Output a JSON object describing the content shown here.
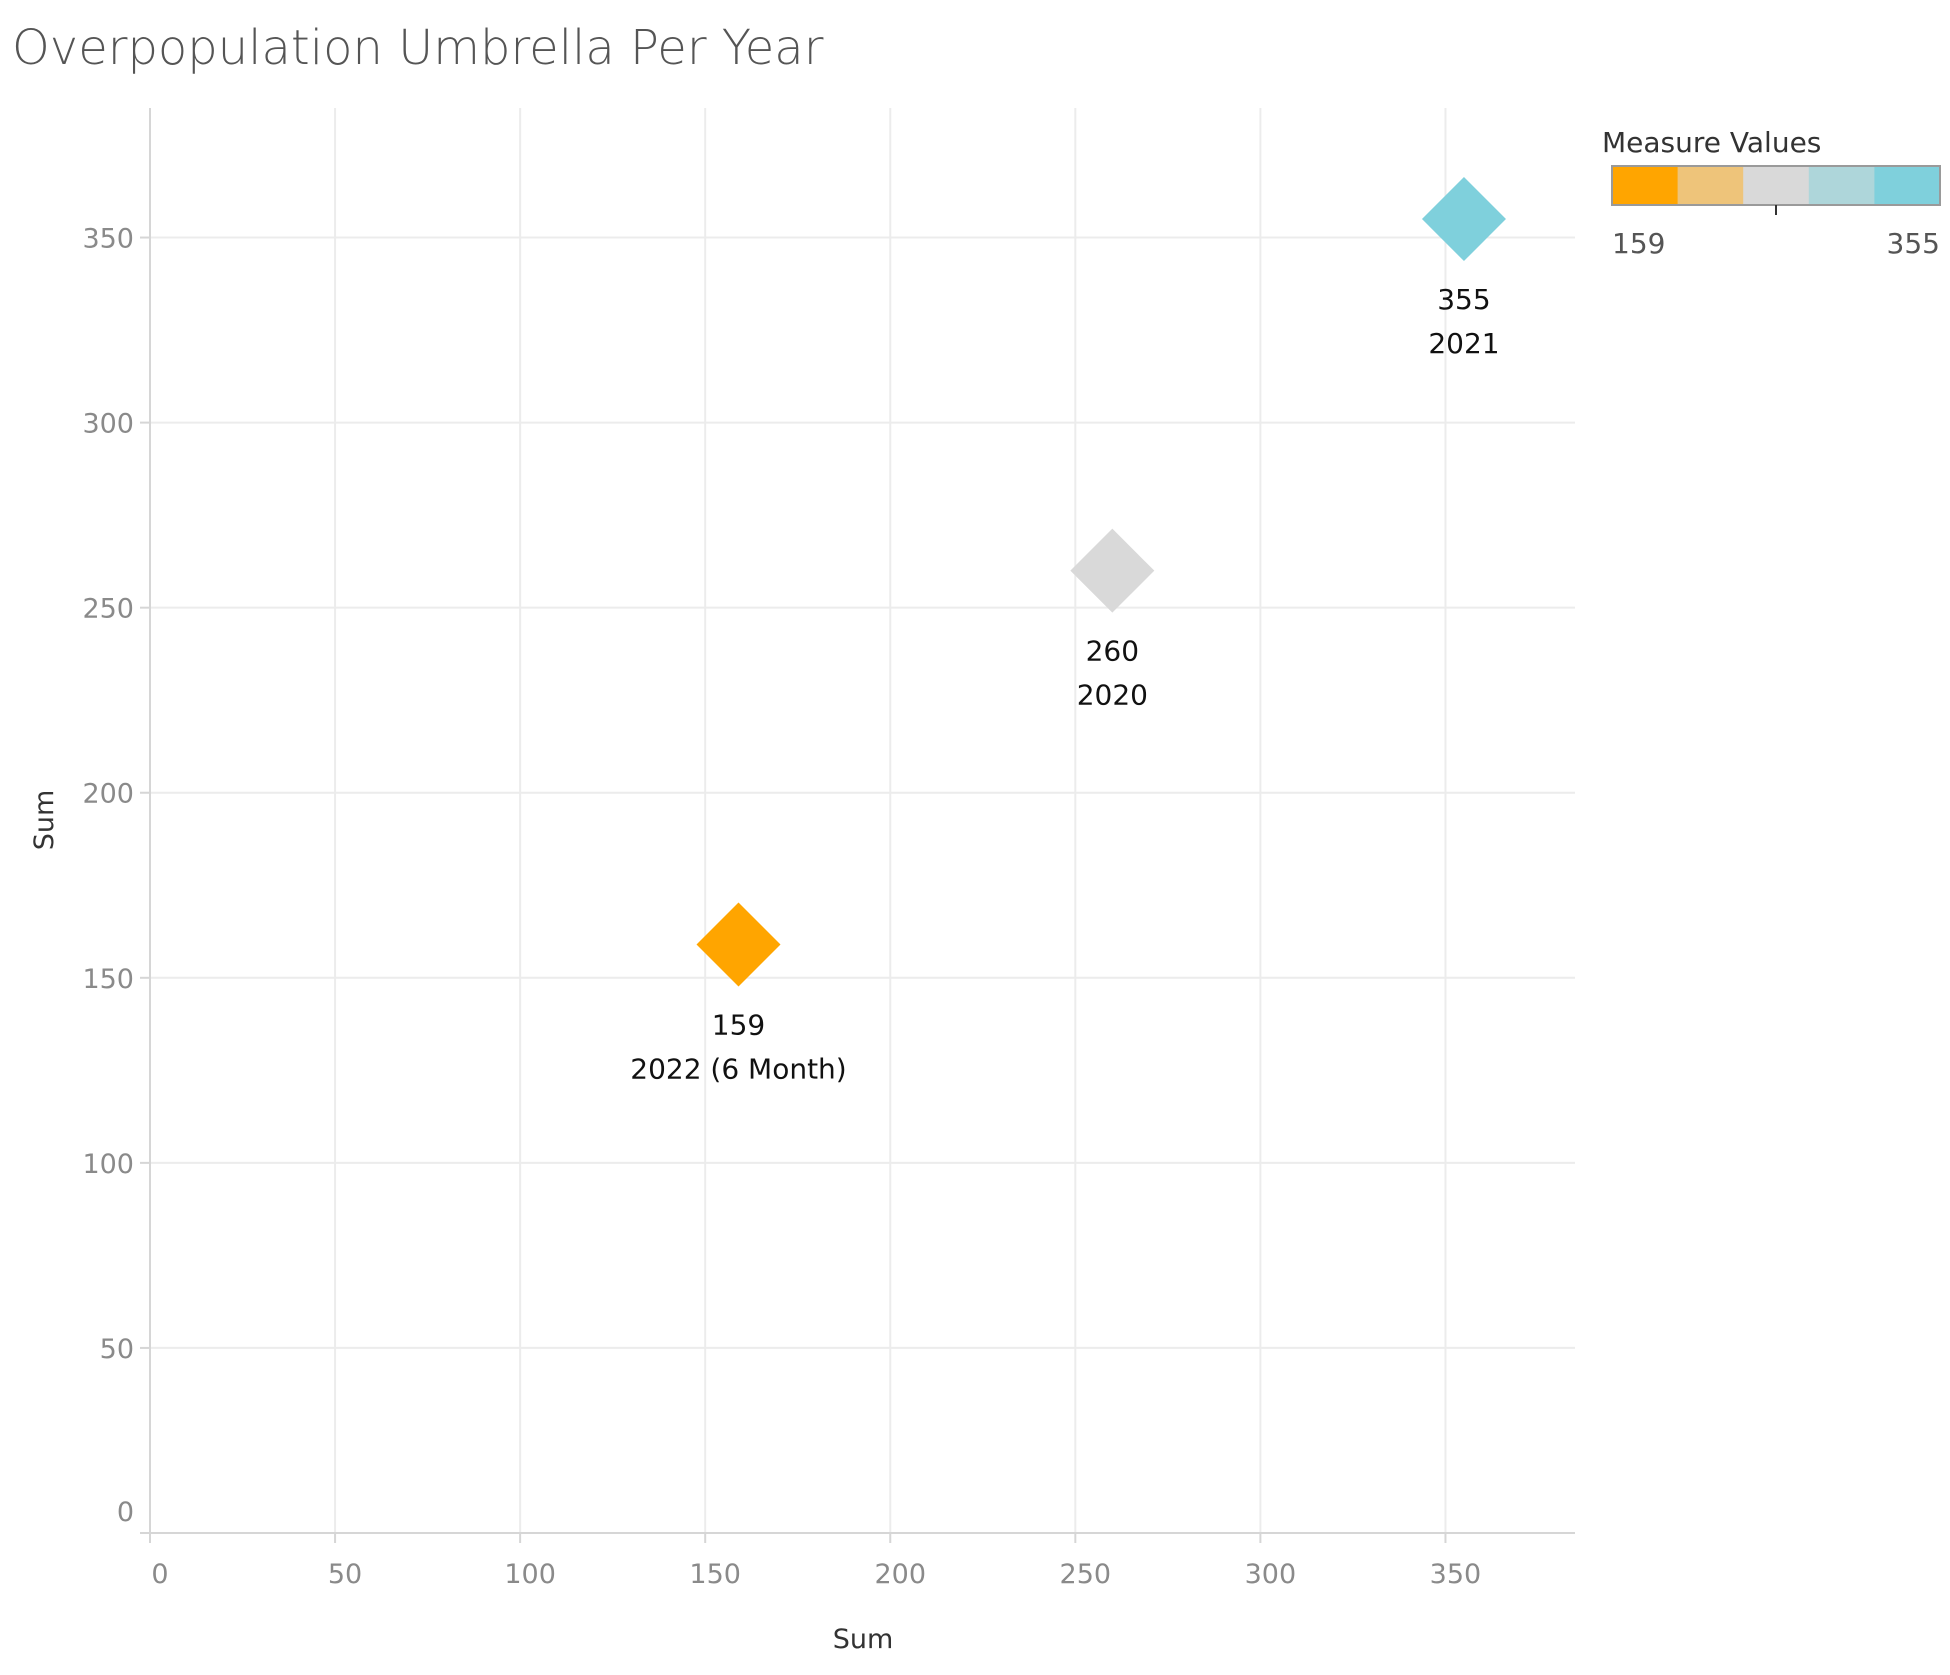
{
  "chart_data": {
    "type": "scatter",
    "title": "Overpopulation Umbrella Per Year",
    "xlabel": "Sum",
    "ylabel": "Sum",
    "xlim": [
      0,
      385
    ],
    "ylim": [
      0,
      385
    ],
    "x_ticks": [
      0,
      50,
      100,
      150,
      200,
      250,
      300,
      350
    ],
    "y_ticks": [
      0,
      50,
      100,
      150,
      200,
      250,
      300,
      350
    ],
    "grid": true,
    "marker": "diamond",
    "points": [
      {
        "x": 159,
        "y": 159,
        "value_label": "159",
        "year_label": "2022 (6 Month)",
        "color": "#FFA500"
      },
      {
        "x": 260,
        "y": 260,
        "value_label": "260",
        "year_label": "2020",
        "color": "#D9D9D9"
      },
      {
        "x": 355,
        "y": 355,
        "value_label": "355",
        "year_label": "2021",
        "color": "#7FD0DC"
      }
    ],
    "legend": {
      "title": "Measure Values",
      "placement": "top-right",
      "min_label": "159",
      "max_label": "355",
      "colors": [
        "#FFA500",
        "#EEC47A",
        "#D9D9D9",
        "#AED6DA",
        "#7FD0DC"
      ]
    }
  }
}
